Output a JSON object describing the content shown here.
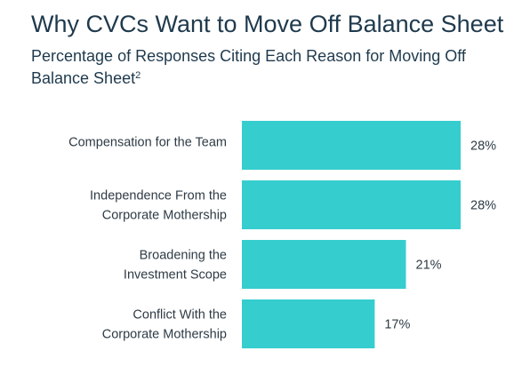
{
  "title": "Why CVCs Want to Move Off Balance Sheet",
  "subtitle": "Percentage of Responses Citing Each Reason for Moving Off Balance Sheet",
  "subtitle_footnote": "2",
  "colors": {
    "bar": "#36cdcf",
    "title": "#1f3a4d",
    "text": "#2e3b45"
  },
  "chart_data": {
    "type": "bar",
    "orientation": "horizontal",
    "categories": [
      [
        "Compensation for the Team"
      ],
      [
        "Independence From the",
        "Corporate Mothership"
      ],
      [
        "Broadening the",
        "Investment Scope"
      ],
      [
        "Conflict With the",
        "Corporate Mothership"
      ]
    ],
    "values": [
      28,
      28,
      21,
      17
    ],
    "value_labels": [
      "28%",
      "28%",
      "21%",
      "17%"
    ],
    "unit": "%",
    "xlim": [
      0,
      28
    ],
    "grid": false,
    "legend": "none"
  }
}
